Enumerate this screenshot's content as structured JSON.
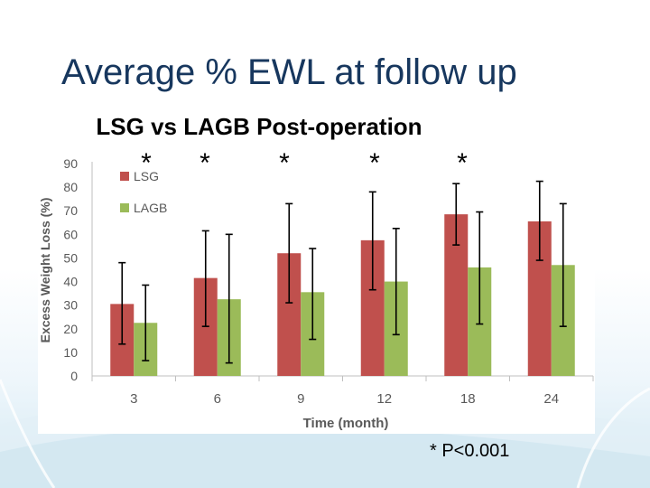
{
  "slide": {
    "title": "Average % EWL at follow up",
    "footnote": "* P<0.001"
  },
  "colors": {
    "title_text": "#17375e",
    "lsg": "#c0504d",
    "lagb": "#9bbb59",
    "axis_text": "#595959",
    "gridline": "#d9d9d9"
  },
  "chart_data": {
    "type": "bar",
    "title": "LSG vs LAGB Post-operation",
    "xlabel": "Time (month)",
    "ylabel": "Excess Weight Loss (%)",
    "ylim": [
      0,
      90
    ],
    "yticks": [
      0,
      10,
      20,
      30,
      40,
      50,
      60,
      70,
      80,
      90
    ],
    "categories": [
      "3",
      "6",
      "9",
      "12",
      "18",
      "24"
    ],
    "significance_marker": "*",
    "significant": [
      true,
      true,
      true,
      true,
      true,
      false
    ],
    "grid": false,
    "legend_position": "top-left",
    "series": [
      {
        "name": "LSG",
        "color": "#c0504d",
        "values": [
          30.5,
          41.5,
          52,
          57.5,
          68.5,
          65.5
        ],
        "error": [
          [
            13.5,
            48
          ],
          [
            21,
            61.5
          ],
          [
            31,
            73
          ],
          [
            36.5,
            78
          ],
          [
            55.5,
            81.5
          ],
          [
            49,
            82.5
          ]
        ]
      },
      {
        "name": "LAGB",
        "color": "#9bbb59",
        "values": [
          22.5,
          32.5,
          35.5,
          40,
          46,
          47
        ],
        "error": [
          [
            6.5,
            38.5
          ],
          [
            5.5,
            60
          ],
          [
            15.5,
            54
          ],
          [
            17.5,
            62.5
          ],
          [
            22,
            69.5
          ],
          [
            21,
            73
          ]
        ]
      }
    ]
  }
}
